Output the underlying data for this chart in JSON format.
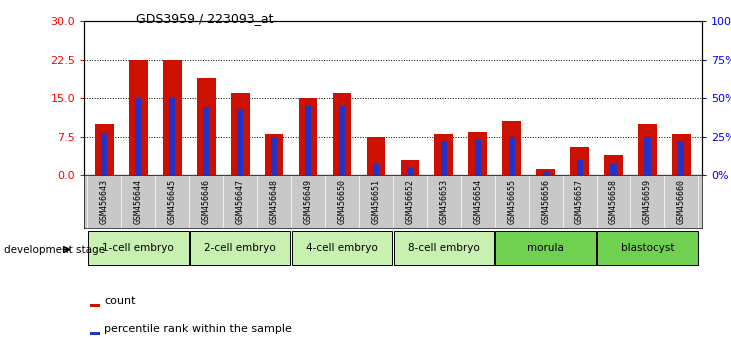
{
  "title": "GDS3959 / 223093_at",
  "samples": [
    "GSM456643",
    "GSM456644",
    "GSM456645",
    "GSM456646",
    "GSM456647",
    "GSM456648",
    "GSM456649",
    "GSM456650",
    "GSM456651",
    "GSM456652",
    "GSM456653",
    "GSM456654",
    "GSM456655",
    "GSM456656",
    "GSM456657",
    "GSM456658",
    "GSM456659",
    "GSM456660"
  ],
  "counts": [
    10.0,
    22.5,
    22.5,
    19.0,
    16.0,
    8.0,
    15.0,
    16.0,
    7.5,
    3.0,
    8.0,
    8.5,
    10.5,
    1.2,
    5.5,
    4.0,
    10.0,
    8.0
  ],
  "percentile_ranks_pct": [
    27.5,
    50.0,
    50.0,
    44.0,
    43.0,
    25.0,
    45.0,
    45.0,
    7.5,
    5.0,
    22.5,
    23.0,
    25.0,
    3.0,
    10.0,
    7.5,
    25.0,
    22.5
  ],
  "stage_names": [
    "1-cell embryo",
    "2-cell embryo",
    "4-cell embryo",
    "8-cell embryo",
    "morula",
    "blastocyst"
  ],
  "stage_ranges": [
    [
      0,
      3
    ],
    [
      3,
      6
    ],
    [
      6,
      9
    ],
    [
      9,
      12
    ],
    [
      12,
      15
    ],
    [
      15,
      18
    ]
  ],
  "stage_color_light": "#c8f0b0",
  "stage_color_dark": "#70d050",
  "ylim_left": [
    0,
    30
  ],
  "ylim_right": [
    0,
    100
  ],
  "yticks_left": [
    0,
    7.5,
    15,
    22.5,
    30
  ],
  "yticks_right": [
    0,
    25,
    50,
    75,
    100
  ],
  "bar_color_count": "#cc1100",
  "bar_color_percentile": "#2233cc",
  "bar_width": 0.55,
  "blue_bar_width": 0.18,
  "background_plot": "#ffffff",
  "xtick_bg": "#c8c8c8",
  "dev_stage_text": "development stage"
}
